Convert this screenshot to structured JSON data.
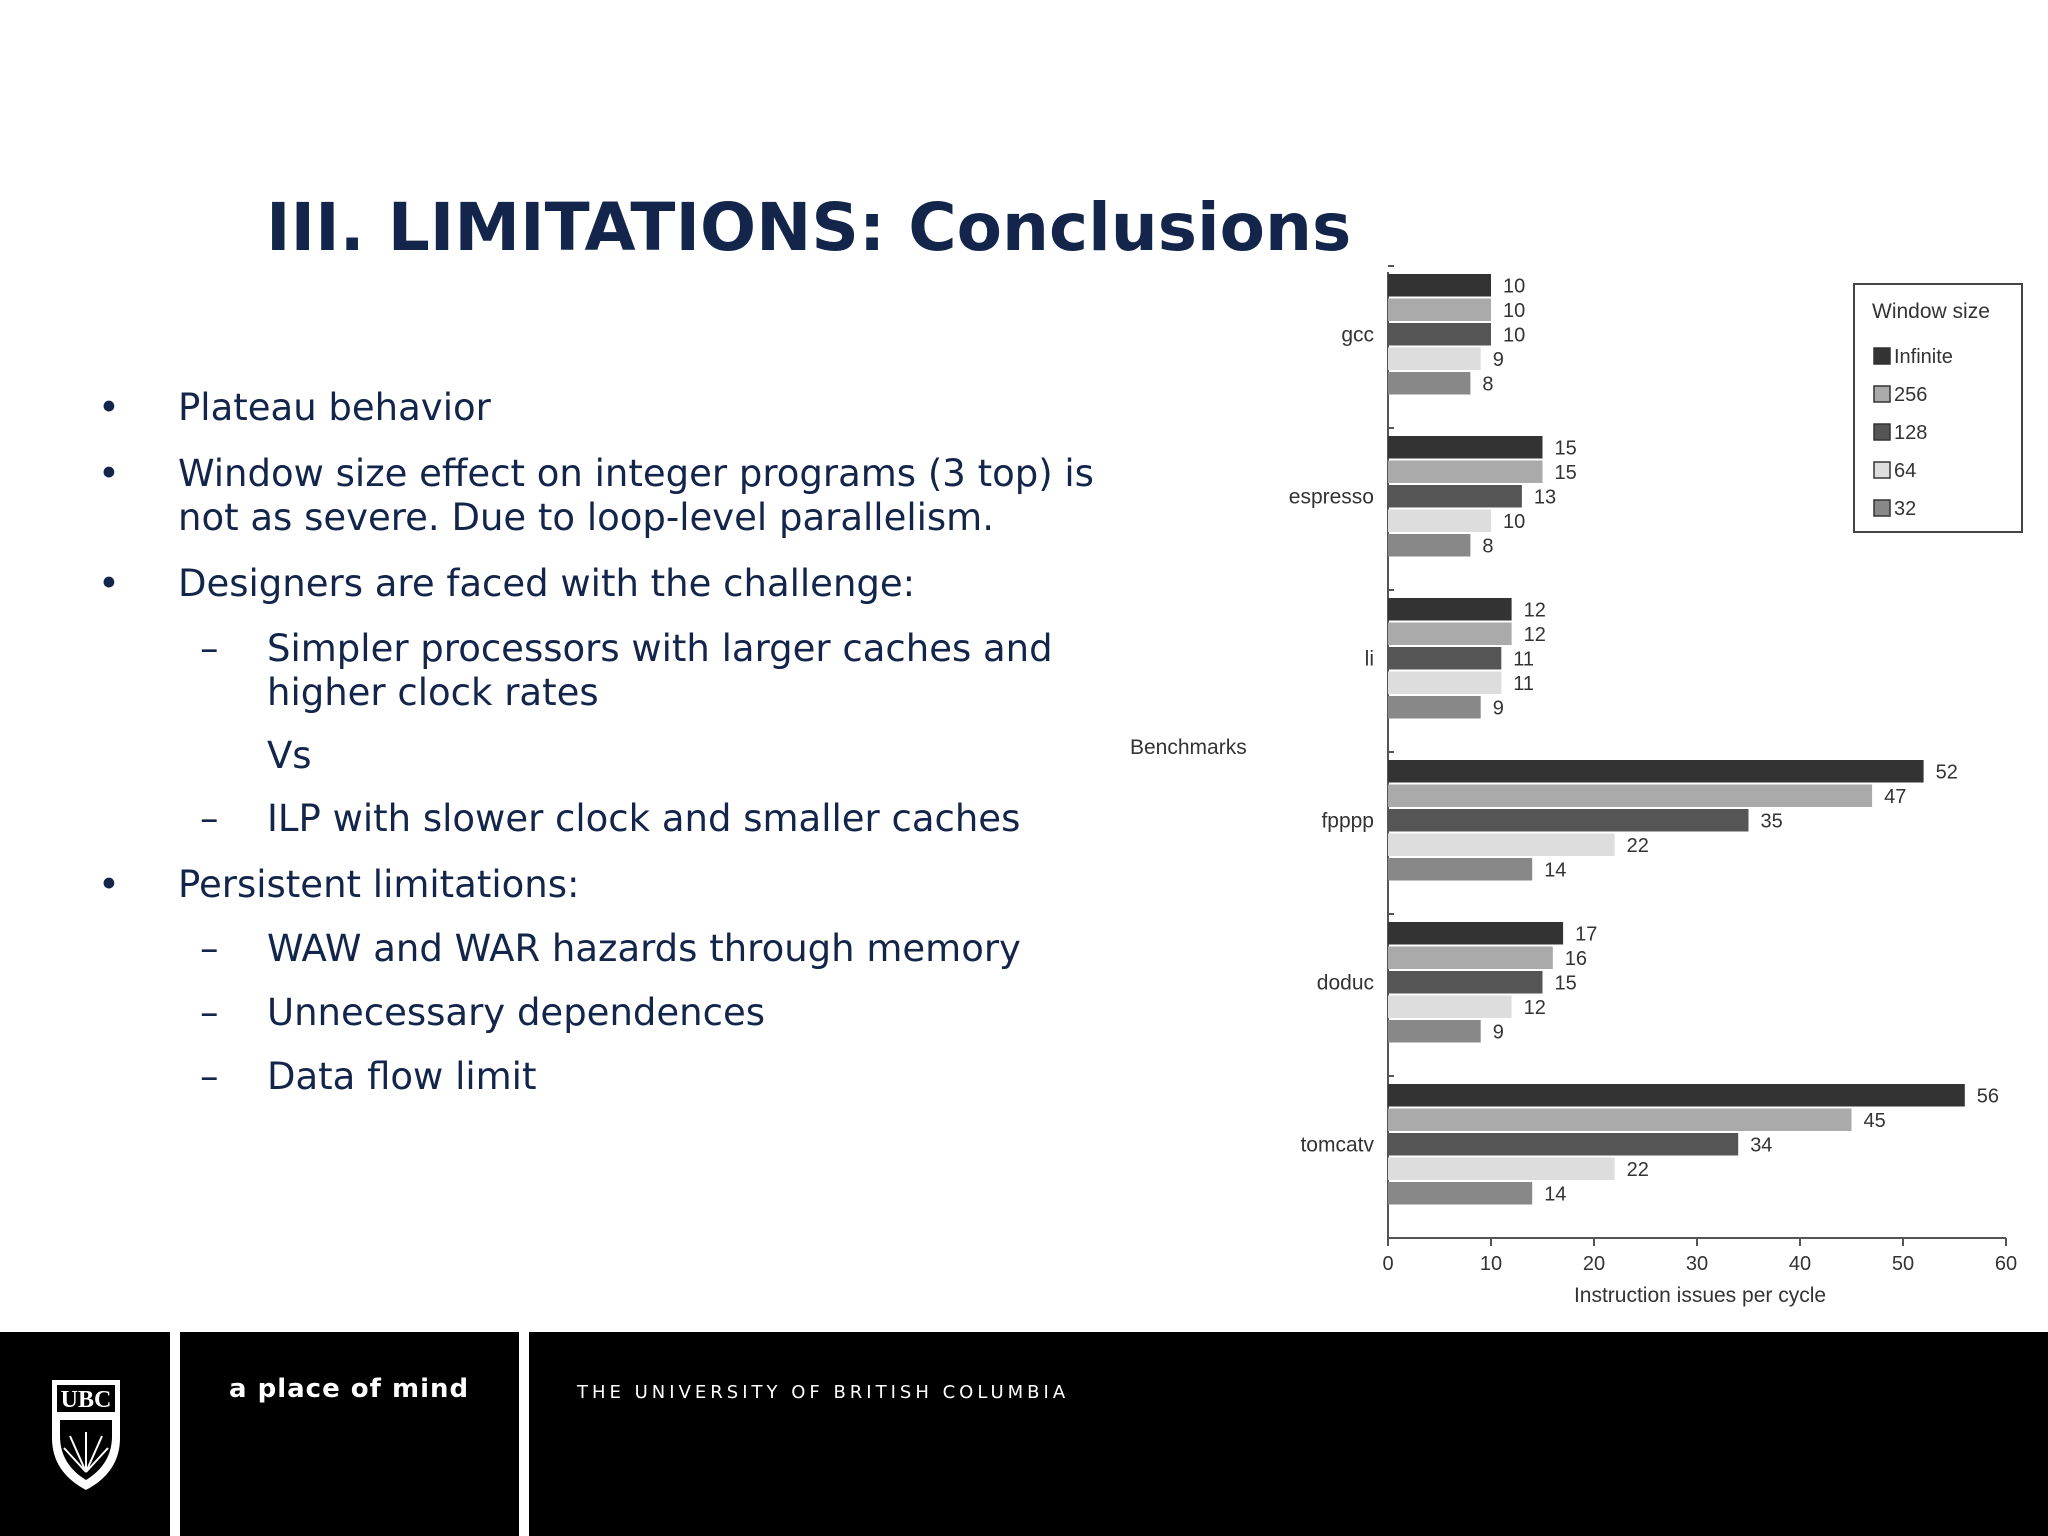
{
  "title": "III. LIMITATIONS: Conclusions",
  "bullets": [
    {
      "marker": "•",
      "text": "Plateau behavior"
    },
    {
      "marker": "•",
      "text": "Window size effect on integer programs (3 top) is"
    },
    {
      "marker": "",
      "text": "not as severe. Due to loop-level parallelism."
    },
    {
      "marker": "•",
      "text": "Designers are faced with the challenge:"
    },
    {
      "marker": "–",
      "text": "Simpler processors with larger caches and"
    },
    {
      "marker": "",
      "text": "higher clock rates"
    },
    {
      "marker": "",
      "text": "Vs"
    },
    {
      "marker": "–",
      "text": "ILP with slower clock and smaller caches"
    },
    {
      "marker": "•",
      "text": "Persistent limitations:"
    },
    {
      "marker": "–",
      "text": "WAW and WAR hazards through memory"
    },
    {
      "marker": "–",
      "text": "Unnecessary dependences"
    },
    {
      "marker": "–",
      "text": "Data flow limit"
    }
  ],
  "chart_data": {
    "type": "bar",
    "orientation": "horizontal",
    "categories": [
      "gcc",
      "espresso",
      "li",
      "fpppp",
      "doduc",
      "tomcatv"
    ],
    "series": [
      {
        "name": "Infinite",
        "color": "#333333",
        "values": [
          10,
          15,
          12,
          52,
          17,
          56
        ]
      },
      {
        "name": "256",
        "color": "#aaaaaa",
        "values": [
          10,
          15,
          12,
          47,
          16,
          45
        ]
      },
      {
        "name": "128",
        "color": "#555555",
        "values": [
          10,
          13,
          11,
          35,
          15,
          34
        ]
      },
      {
        "name": "64",
        "color": "#dddddd",
        "values": [
          9,
          10,
          11,
          22,
          12,
          22
        ]
      },
      {
        "name": "32",
        "color": "#888888",
        "values": [
          8,
          8,
          9,
          14,
          9,
          14
        ]
      }
    ],
    "xlabel": "Instruction issues per cycle",
    "ylabel": "Benchmarks",
    "xlim": [
      0,
      60
    ],
    "xticks": [
      0,
      10,
      20,
      30,
      40,
      50,
      60
    ],
    "legend_title": "Window size",
    "legend_position": "top-right",
    "grid": false
  },
  "footer": {
    "tagline": "a place of mind",
    "university": "THE UNIVERSITY OF BRITISH COLUMBIA",
    "logo_text": "UBC"
  }
}
